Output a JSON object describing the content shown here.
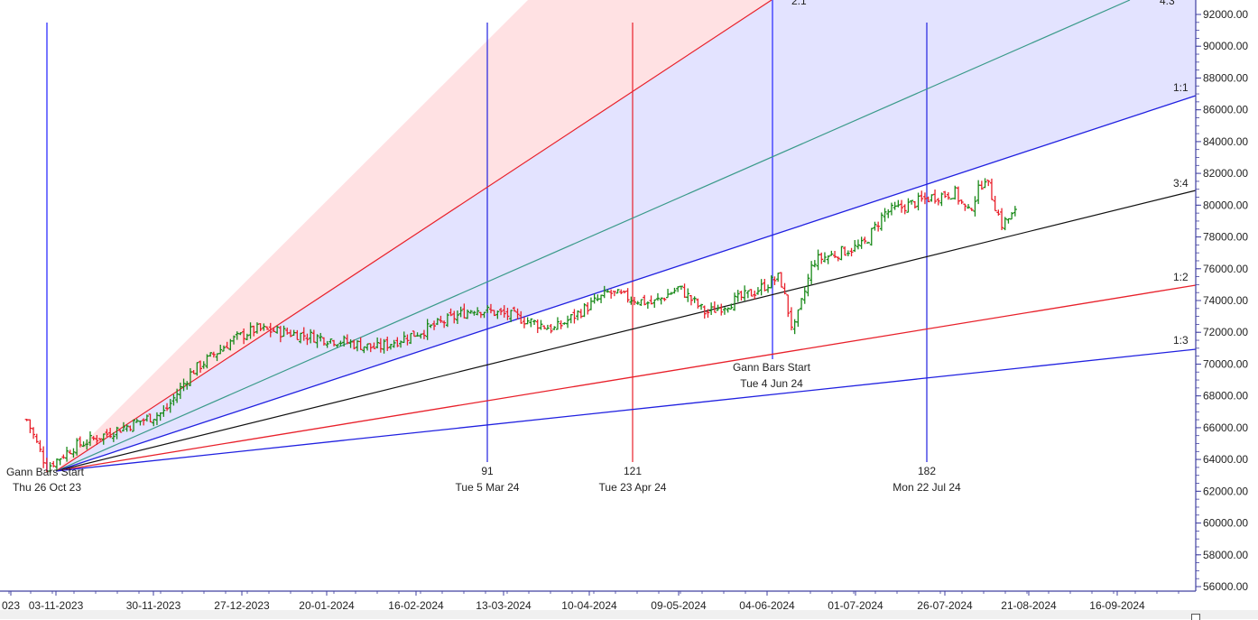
{
  "chart_data": {
    "type": "ohlc-bar",
    "title": "",
    "xlabel": "",
    "ylabel": "",
    "ylim": [
      56000,
      92000
    ],
    "y_ticks": [
      "92000.00",
      "90000.00",
      "88000.00",
      "86000.00",
      "84000.00",
      "82000.00",
      "80000.00",
      "78000.00",
      "76000.00",
      "74000.00",
      "72000.00",
      "70000.00",
      "68000.00",
      "66000.00",
      "64000.00",
      "62000.00",
      "60000.00",
      "58000.00",
      "56000.00"
    ],
    "x_ticks": [
      "023",
      "03-11-2023",
      "30-11-2023",
      "27-12-2023",
      "20-01-2024",
      "16-02-2024",
      "13-03-2024",
      "10-04-2024",
      "09-05-2024",
      "04-06-2024",
      "01-07-2024",
      "26-07-2024",
      "21-08-2024",
      "16-09-2024"
    ],
    "colors": {
      "up_bar": "#1a8a1a",
      "down_bar": "#e8202a",
      "fan_pink_fill": "#ffe1e3",
      "fan_lavender_fill": "#e3e3ff",
      "line_2_1": "#e8202a",
      "line_4_3": "#3a9a8a",
      "line_1_1": "#2020e0",
      "line_3_4": "#111111",
      "line_1_2": "#e8202a",
      "line_1_3": "#2020e0",
      "axis": "#4040a0"
    },
    "gann_fan": {
      "origin_date": "Thu 26 Oct 23",
      "origin_price": 63200,
      "lines": [
        {
          "label": "2:1",
          "color": "#e8202a"
        },
        {
          "label": "4:3",
          "color": "#3a9a8a"
        },
        {
          "label": "1:1",
          "color": "#2020e0"
        },
        {
          "label": "3:4",
          "color": "#111111"
        },
        {
          "label": "1:2",
          "color": "#e8202a"
        },
        {
          "label": "1:3",
          "color": "#2020e0"
        }
      ]
    },
    "annotations": [
      {
        "type": "vline",
        "color": "#2020e0",
        "bar": "",
        "date": "Thu 26 Oct 23",
        "text": "Gann Bars Start"
      },
      {
        "type": "vline",
        "color": "#2020e0",
        "bar": "91",
        "date": "Tue 5 Mar 24"
      },
      {
        "type": "vline",
        "color": "#e8202a",
        "bar": "121",
        "date": "Tue 23 Apr 24"
      },
      {
        "type": "vline",
        "color": "#2020e0",
        "bar": "",
        "date": "Tue 4 Jun 24",
        "text": "Gann Bars Start"
      },
      {
        "type": "vline",
        "color": "#2020e0",
        "bar": "182",
        "date": "Mon 22 Jul 24"
      }
    ],
    "series": [
      {
        "name": "price_close_approx",
        "points": [
          [
            "2023-10-20",
            66500
          ],
          [
            "2023-10-26",
            63500
          ],
          [
            "2023-11-03",
            64800
          ],
          [
            "2023-11-15",
            65800
          ],
          [
            "2023-11-30",
            67000
          ],
          [
            "2023-12-08",
            69500
          ],
          [
            "2023-12-20",
            71500
          ],
          [
            "2023-12-27",
            72200
          ],
          [
            "2024-01-05",
            72000
          ],
          [
            "2024-01-20",
            71500
          ],
          [
            "2024-02-01",
            71000
          ],
          [
            "2024-02-16",
            72200
          ],
          [
            "2024-03-01",
            73500
          ],
          [
            "2024-03-13",
            73000
          ],
          [
            "2024-03-25",
            72200
          ],
          [
            "2024-04-10",
            74500
          ],
          [
            "2024-04-23",
            73800
          ],
          [
            "2024-05-01",
            74800
          ],
          [
            "2024-05-09",
            73200
          ],
          [
            "2024-05-23",
            74500
          ],
          [
            "2024-05-31",
            75500
          ],
          [
            "2024-06-04",
            72000
          ],
          [
            "2024-06-10",
            76500
          ],
          [
            "2024-06-25",
            77500
          ],
          [
            "2024-07-01",
            79500
          ],
          [
            "2024-07-15",
            80500
          ],
          [
            "2024-07-22",
            80800
          ],
          [
            "2024-07-26",
            79500
          ],
          [
            "2024-07-31",
            81800
          ],
          [
            "2024-08-05",
            78800
          ],
          [
            "2024-08-09",
            79500
          ]
        ]
      }
    ],
    "grid": false
  },
  "labels": {
    "fan_2_1": "2:1",
    "fan_4_3": "4:3",
    "fan_1_1": "1:1",
    "fan_3_4": "3:4",
    "fan_1_2": "1:2",
    "fan_1_3": "1:3",
    "start1_title": "Gann Bars Start",
    "start1_date": "Thu 26 Oct 23",
    "v91_num": "91",
    "v91_date": "Tue 5 Mar 24",
    "v121_num": "121",
    "v121_date": "Tue 23 Apr 24",
    "start2_title": "Gann Bars Start",
    "start2_date": "Tue 4 Jun 24",
    "v182_num": "182",
    "v182_date": "Mon 22 Jul 24"
  }
}
